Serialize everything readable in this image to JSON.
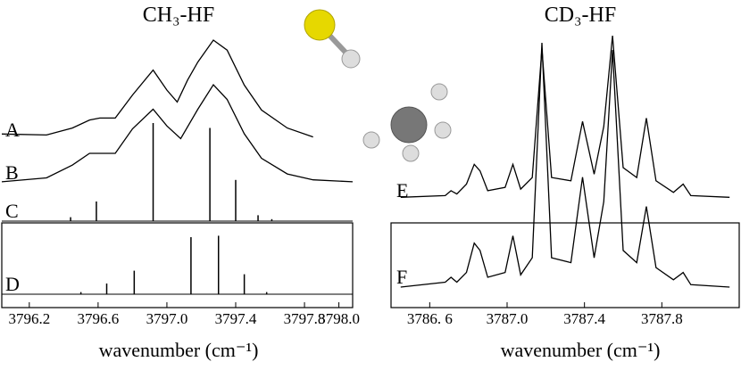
{
  "chart_data": [
    {
      "type": "line",
      "title": "CH₃-HF",
      "x_label": "wavenumber (cm⁻¹)",
      "xlim": [
        3796.04,
        3798.08
      ],
      "xticks": [
        3796.2,
        3796.6,
        {
          "value": 3797.0,
          "label": "3797.0"
        },
        3797.4,
        {
          "value": 3798.0,
          "label": "3798.0"
        },
        3797.8
      ],
      "series": [
        {
          "name": "A",
          "color": "#000000",
          "style": "line",
          "x": [
            3796.04,
            3796.3,
            3796.45,
            3796.55,
            3796.61,
            3796.7,
            3796.8,
            3796.92,
            3797.0,
            3797.06,
            3797.12,
            3797.18,
            3797.27,
            3797.35,
            3797.45,
            3797.55,
            3797.7,
            3797.85
          ],
          "values": [
            0.06,
            0.05,
            0.12,
            0.2,
            0.22,
            0.22,
            0.45,
            0.7,
            0.5,
            0.38,
            0.6,
            0.78,
            1.0,
            0.9,
            0.55,
            0.3,
            0.12,
            0.03
          ]
        },
        {
          "name": "B",
          "color": "#000000",
          "style": "line",
          "x": [
            3796.04,
            3796.3,
            3796.45,
            3796.55,
            3796.61,
            3796.7,
            3796.8,
            3796.92,
            3797.0,
            3797.08,
            3797.18,
            3797.27,
            3797.35,
            3797.45,
            3797.55,
            3797.7,
            3797.85,
            3798.08
          ],
          "values": [
            0.01,
            0.05,
            0.18,
            0.3,
            0.3,
            0.3,
            0.55,
            0.75,
            0.58,
            0.45,
            0.75,
            1.0,
            0.85,
            0.5,
            0.25,
            0.09,
            0.03,
            0.01
          ]
        },
        {
          "name": "C",
          "color": "#000000",
          "style": "sticks",
          "x": [
            3796.44,
            3796.59,
            3796.92,
            3797.25,
            3797.4,
            3797.53,
            3797.61
          ],
          "values": [
            0.04,
            0.2,
            1.0,
            0.95,
            0.42,
            0.06,
            0.02
          ]
        },
        {
          "name": "D",
          "color": "#000000",
          "style": "sticks",
          "x": [
            3796.5,
            3796.65,
            3796.81,
            3797.14,
            3797.3,
            3797.45,
            3797.58
          ],
          "values": [
            0.03,
            0.15,
            0.33,
            0.8,
            0.82,
            0.28,
            0.03
          ]
        }
      ]
    },
    {
      "type": "line",
      "title": "CD₃-HF",
      "x_label": "wavenumber (cm⁻¹)",
      "xlim": [
        3786.4,
        3788.2
      ],
      "xticks": [
        {
          "value": 3786.6,
          "label": "3786. 6"
        },
        {
          "value": 3787.0,
          "label": "3787.0"
        },
        3787.4,
        3787.8
      ],
      "series": [
        {
          "name": "E",
          "color": "#000000",
          "style": "line",
          "x": [
            3786.45,
            3786.68,
            3786.71,
            3786.74,
            3786.79,
            3786.83,
            3786.86,
            3786.9,
            3786.99,
            3787.03,
            3787.07,
            3787.13,
            3787.18,
            3787.23,
            3787.33,
            3787.39,
            3787.45,
            3787.5,
            3787.545,
            3787.6,
            3787.67,
            3787.72,
            3787.77,
            3787.86,
            3787.91,
            3787.95,
            3788.15
          ],
          "values": [
            0.02,
            0.03,
            0.06,
            0.04,
            0.1,
            0.22,
            0.18,
            0.06,
            0.08,
            0.22,
            0.07,
            0.14,
            0.92,
            0.14,
            0.12,
            0.48,
            0.16,
            0.45,
            1.0,
            0.2,
            0.14,
            0.5,
            0.12,
            0.05,
            0.1,
            0.03,
            0.02
          ]
        },
        {
          "name": "F",
          "color": "#000000",
          "style": "line",
          "x": [
            3786.45,
            3786.68,
            3786.71,
            3786.74,
            3786.79,
            3786.83,
            3786.86,
            3786.9,
            3786.99,
            3787.03,
            3787.07,
            3787.13,
            3787.18,
            3787.23,
            3787.33,
            3787.39,
            3787.45,
            3787.5,
            3787.545,
            3787.6,
            3787.67,
            3787.72,
            3787.77,
            3787.86,
            3787.91,
            3787.95,
            3788.15
          ],
          "values": [
            0,
            0.02,
            0.04,
            0.02,
            0.06,
            0.18,
            0.15,
            0.04,
            0.06,
            0.21,
            0.05,
            0.12,
            1.0,
            0.12,
            0.1,
            0.45,
            0.12,
            0.35,
            0.97,
            0.15,
            0.1,
            0.33,
            0.08,
            0.03,
            0.06,
            0.01,
            0
          ]
        }
      ]
    }
  ]
}
